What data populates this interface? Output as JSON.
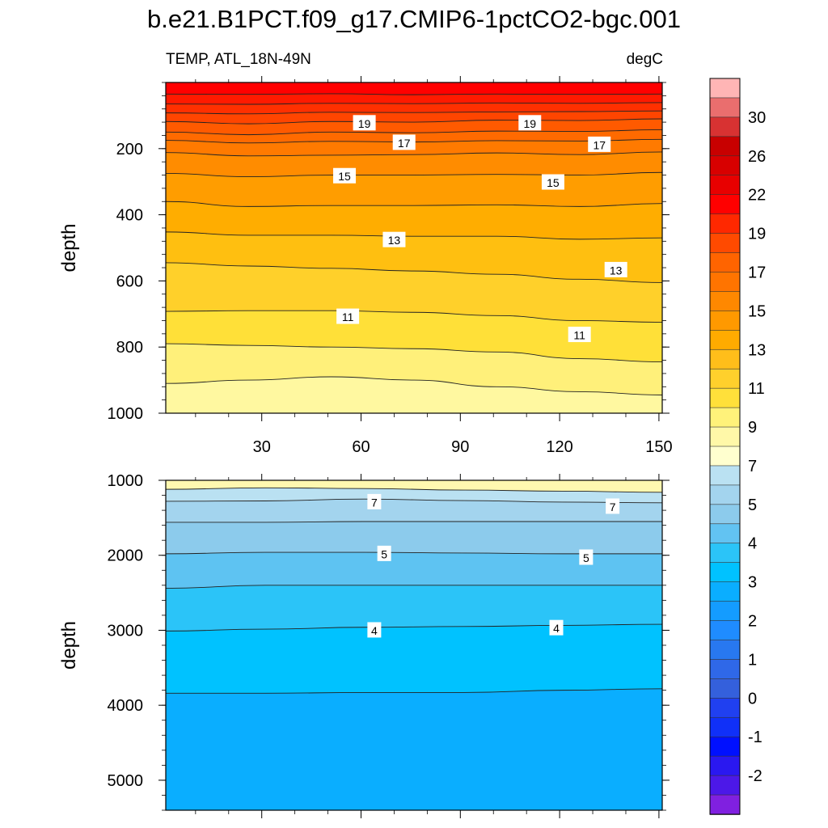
{
  "title": "b.e21.B1PCT.f09_g17.CMIP6-1pctCO2-bgc.001",
  "variable_label": "TEMP, ATL_18N-49N",
  "units_label": "degC",
  "chart_data": [
    {
      "type": "heatmap",
      "panel": "upper",
      "title": "b.e21.B1PCT.f09_g17.CMIP6-1pctCO2-bgc.001",
      "xlabel": "",
      "ylabel": "depth",
      "xlim": [
        1,
        151
      ],
      "ylim": [
        1000,
        0
      ],
      "x_ticks": [
        30,
        60,
        90,
        120,
        150
      ],
      "y_ticks": [
        200,
        400,
        600,
        800,
        1000
      ],
      "isotherms": [
        {
          "level": 22,
          "depths": [
            35,
            36,
            34,
            37,
            35,
            36,
            35
          ]
        },
        {
          "level": 21,
          "depths": [
            65,
            66,
            63,
            64,
            62,
            63,
            61
          ]
        },
        {
          "level": 20,
          "depths": [
            92,
            95,
            90,
            91,
            89,
            88,
            86
          ]
        },
        {
          "level": 19,
          "depths": [
            118,
            125,
            118,
            120,
            114,
            115,
            110
          ]
        },
        {
          "level": 18,
          "depths": [
            150,
            158,
            150,
            152,
            147,
            148,
            143
          ]
        },
        {
          "level": 17,
          "depths": [
            175,
            183,
            178,
            180,
            176,
            177,
            172
          ]
        },
        {
          "level": 16,
          "depths": [
            212,
            222,
            220,
            218,
            213,
            218,
            210
          ]
        },
        {
          "level": 15,
          "depths": [
            275,
            285,
            280,
            280,
            278,
            280,
            272
          ]
        },
        {
          "level": 14,
          "depths": [
            360,
            375,
            372,
            372,
            370,
            375,
            366
          ]
        },
        {
          "level": 13,
          "depths": [
            452,
            462,
            462,
            465,
            465,
            474,
            470
          ]
        },
        {
          "level": 12,
          "depths": [
            545,
            555,
            562,
            570,
            580,
            595,
            605
          ]
        },
        {
          "level": 11,
          "depths": [
            692,
            690,
            690,
            695,
            705,
            720,
            725
          ]
        },
        {
          "level": 10,
          "depths": [
            790,
            795,
            800,
            805,
            815,
            835,
            845
          ]
        },
        {
          "level": 9,
          "depths": [
            910,
            900,
            890,
            900,
            920,
            935,
            945
          ]
        }
      ],
      "contour_labels": [
        {
          "text": "19",
          "x": 61,
          "y": 123
        },
        {
          "text": "19",
          "x": 111,
          "y": 123
        },
        {
          "text": "17",
          "x": 73,
          "y": 182
        },
        {
          "text": "17",
          "x": 132,
          "y": 188
        },
        {
          "text": "15",
          "x": 55,
          "y": 283
        },
        {
          "text": "15",
          "x": 118,
          "y": 302
        },
        {
          "text": "13",
          "x": 70,
          "y": 476
        },
        {
          "text": "13",
          "x": 137,
          "y": 567
        },
        {
          "text": "11",
          "x": 56,
          "y": 708
        },
        {
          "text": "11",
          "x": 126,
          "y": 763
        }
      ]
    },
    {
      "type": "heatmap",
      "panel": "lower",
      "xlabel": "",
      "ylabel": "depth",
      "xlim": [
        1,
        151
      ],
      "ylim": [
        5400,
        1000
      ],
      "x_ticks": [
        30,
        60,
        90,
        120,
        150
      ],
      "y_ticks": [
        1000,
        2000,
        3000,
        4000,
        5000
      ],
      "isotherms": [
        {
          "level": 8,
          "depths": [
            1120,
            1100,
            1110,
            1130,
            1145,
            1160
          ]
        },
        {
          "level": 7,
          "depths": [
            1280,
            1275,
            1250,
            1270,
            1290,
            1300
          ]
        },
        {
          "level": 6,
          "depths": [
            1560,
            1560,
            1550,
            1550,
            1550,
            1550
          ]
        },
        {
          "level": 5,
          "depths": [
            1980,
            1960,
            1960,
            1970,
            1980,
            1980
          ]
        },
        {
          "level": 4.5,
          "depths": [
            2440,
            2400,
            2400,
            2400,
            2400,
            2400
          ]
        },
        {
          "level": 4,
          "depths": [
            3010,
            2985,
            2960,
            2950,
            2935,
            2920
          ]
        },
        {
          "level": 3.5,
          "depths": [
            3840,
            3840,
            3830,
            3830,
            3800,
            3780
          ]
        }
      ],
      "contour_labels": [
        {
          "text": "7",
          "x": 64,
          "y": 1290
        },
        {
          "text": "7",
          "x": 136,
          "y": 1350
        },
        {
          "text": "5",
          "x": 67,
          "y": 1980
        },
        {
          "text": "5",
          "x": 128,
          "y": 2030
        },
        {
          "text": "4",
          "x": 64,
          "y": 3000
        },
        {
          "text": "4",
          "x": 119,
          "y": 2970
        }
      ]
    }
  ],
  "colorbar": {
    "labels": [
      "30",
      "26",
      "22",
      "19",
      "17",
      "15",
      "13",
      "11",
      "9",
      "7",
      "5",
      "4",
      "3",
      "2",
      "1",
      "0",
      "-1",
      "-2"
    ],
    "colors": [
      "#ffb5b5",
      "#ea6e6e",
      "#d83232",
      "#c80000",
      "#d80000",
      "#e80000",
      "#ff0000",
      "#ff2800",
      "#ff4a00",
      "#ff6400",
      "#ff7400",
      "#ff8800",
      "#ff9900",
      "#ffab00",
      "#ffbe1a",
      "#ffd02c",
      "#ffe03a",
      "#fff27a",
      "#fff8a8",
      "#ffffcf",
      "#bae1f2",
      "#a3d4ee",
      "#8ccbec",
      "#62c3f2",
      "#2bc4f8",
      "#00c2ff",
      "#0aaeff",
      "#149cff",
      "#1f8cff",
      "#2878f0",
      "#2f68e8",
      "#3460dc",
      "#2040f0",
      "#1030f8",
      "#0010ff",
      "#2a18f0",
      "#4c18e8",
      "#8020e0"
    ]
  },
  "upper_fill_colors": [
    "#ff0000",
    "#ff1a00",
    "#ff3000",
    "#ff4500",
    "#ff5a00",
    "#ff6a00",
    "#ff7a00",
    "#ff8c00",
    "#ff9d00",
    "#ffad00",
    "#ffbf10",
    "#ffd02a",
    "#ffe038",
    "#fff07a",
    "#fff8a0"
  ],
  "lower_fill_colors": [
    "#fff8b0",
    "#bae1f2",
    "#a3d4ee",
    "#8ccbec",
    "#5ec3f2",
    "#2bc4f8",
    "#00c2ff",
    "#0aaeff"
  ]
}
